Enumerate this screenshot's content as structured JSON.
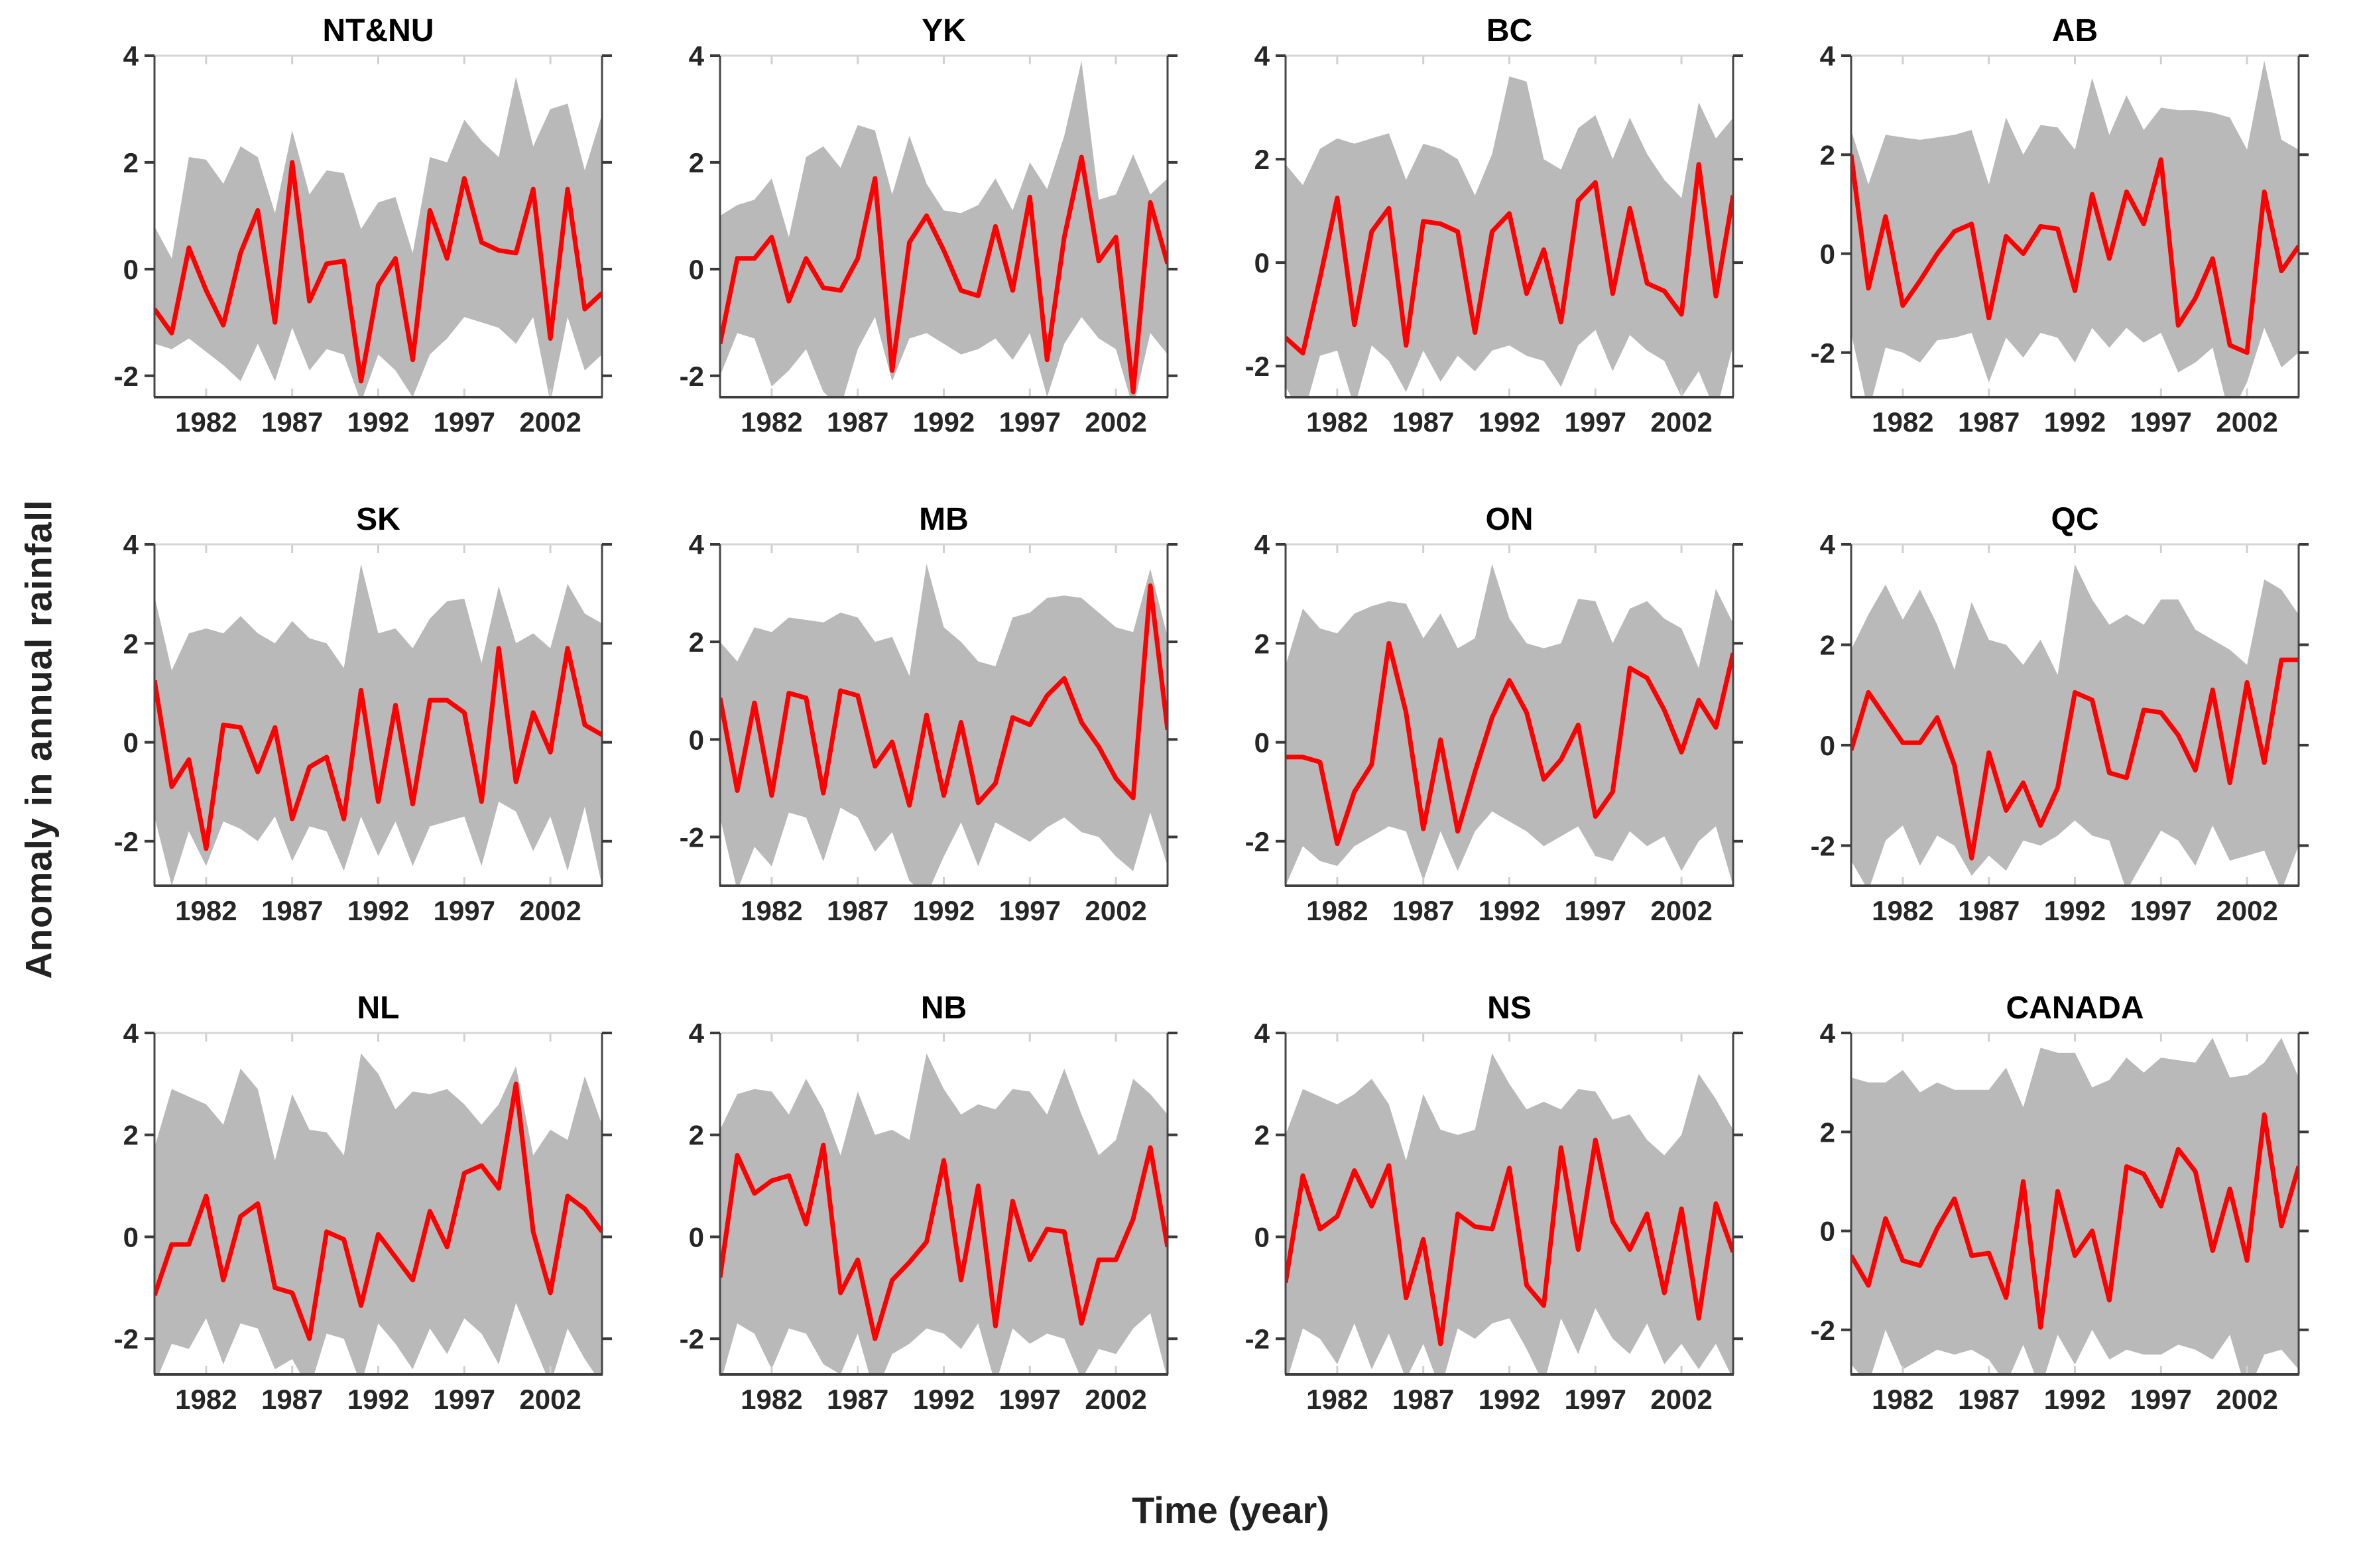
{
  "figure": {
    "ylabel": "Anomaly in annual rainfall",
    "xlabel": "Time (year)",
    "colors": {
      "band": "#b9b9b9",
      "line": "#ff0000",
      "box_top": "#d6d6d6",
      "box_side": "#474747",
      "box_bottom": "#3f3f3f",
      "tick_light": "#d0d0d0",
      "tick_dark": "#3a3a3a",
      "tick_text": "#262626",
      "title_text": "#000000"
    },
    "x_ticks": [
      1982,
      1987,
      1992,
      1997,
      2002
    ],
    "y_ticks": [
      -2,
      0,
      2,
      4
    ],
    "xlim": [
      1979,
      2005
    ],
    "years": [
      1979,
      1980,
      1981,
      1982,
      1983,
      1984,
      1985,
      1986,
      1987,
      1988,
      1989,
      1990,
      1991,
      1992,
      1993,
      1994,
      1995,
      1996,
      1997,
      1998,
      1999,
      2000,
      2001,
      2002,
      2003,
      2004,
      2005
    ]
  },
  "chart_data": [
    {
      "type": "line+band",
      "title": "NT&NU",
      "ylim": [
        -2.4,
        4
      ],
      "line": [
        -0.75,
        -1.2,
        0.4,
        -0.4,
        -1.05,
        0.3,
        1.1,
        -1.0,
        2.0,
        -0.6,
        0.1,
        0.15,
        -2.1,
        -0.3,
        0.2,
        -1.7,
        1.1,
        0.2,
        1.7,
        0.5,
        0.35,
        0.3,
        1.5,
        -1.3,
        1.5,
        -0.75,
        -0.45
      ],
      "band_upper": [
        0.8,
        0.2,
        2.1,
        2.05,
        1.6,
        2.3,
        2.1,
        1.05,
        2.6,
        1.4,
        1.85,
        1.8,
        0.75,
        1.25,
        1.35,
        0.3,
        2.1,
        2.0,
        2.8,
        2.4,
        2.1,
        3.6,
        2.3,
        3.0,
        3.1,
        1.85,
        2.9
      ],
      "band_lower": [
        -1.4,
        -1.5,
        -1.3,
        -1.55,
        -1.8,
        -2.1,
        -1.4,
        -2.1,
        -1.1,
        -1.9,
        -1.5,
        -1.6,
        -2.5,
        -1.6,
        -1.9,
        -2.4,
        -1.6,
        -1.3,
        -0.9,
        -1.0,
        -1.1,
        -1.4,
        -0.9,
        -2.5,
        -0.9,
        -1.9,
        -1.6
      ]
    },
    {
      "type": "line+band",
      "title": "YK",
      "ylim": [
        -2.4,
        4
      ],
      "line": [
        -1.4,
        0.2,
        0.2,
        0.6,
        -0.6,
        0.2,
        -0.35,
        -0.4,
        0.2,
        1.7,
        -1.9,
        0.5,
        1.0,
        0.35,
        -0.4,
        -0.5,
        0.8,
        -0.4,
        1.35,
        -1.7,
        0.6,
        2.1,
        0.15,
        0.6,
        -2.3,
        1.25,
        0.1
      ],
      "band_upper": [
        1.0,
        1.2,
        1.3,
        1.7,
        0.6,
        2.1,
        2.3,
        1.9,
        2.7,
        2.6,
        1.4,
        2.5,
        1.6,
        1.1,
        1.05,
        1.2,
        1.7,
        1.1,
        2.0,
        1.5,
        2.5,
        3.9,
        1.3,
        1.4,
        2.15,
        1.4,
        1.7
      ],
      "band_lower": [
        -2.0,
        -1.2,
        -1.3,
        -2.2,
        -1.9,
        -1.5,
        -2.3,
        -2.6,
        -1.5,
        -0.9,
        -2.1,
        -1.3,
        -1.2,
        -1.4,
        -1.6,
        -1.5,
        -1.3,
        -1.7,
        -1.2,
        -2.4,
        -1.4,
        -0.9,
        -1.3,
        -1.5,
        -2.6,
        -1.2,
        -1.6
      ]
    },
    {
      "type": "line+band",
      "title": "BC",
      "ylim": [
        -2.6,
        4
      ],
      "line": [
        -1.45,
        -1.75,
        -0.3,
        1.25,
        -1.2,
        0.6,
        1.05,
        -1.6,
        0.8,
        0.75,
        0.6,
        -1.35,
        0.6,
        0.95,
        -0.6,
        0.25,
        -1.15,
        1.2,
        1.55,
        -0.6,
        1.05,
        -0.4,
        -0.55,
        -1.0,
        1.9,
        -0.65,
        1.3
      ],
      "band_upper": [
        1.9,
        1.5,
        2.2,
        2.4,
        2.3,
        2.4,
        2.5,
        1.6,
        2.3,
        2.2,
        2.0,
        1.3,
        2.1,
        3.6,
        3.5,
        2.0,
        1.8,
        2.6,
        2.85,
        2.0,
        2.8,
        2.1,
        1.6,
        1.25,
        3.1,
        2.4,
        2.8
      ],
      "band_lower": [
        -2.4,
        -3.0,
        -1.8,
        -1.7,
        -2.8,
        -1.6,
        -1.9,
        -2.5,
        -1.7,
        -2.3,
        -1.8,
        -2.1,
        -1.7,
        -1.6,
        -1.8,
        -1.9,
        -2.4,
        -1.6,
        -1.3,
        -2.1,
        -1.4,
        -1.7,
        -1.9,
        -2.6,
        -2.1,
        -2.9,
        -1.6
      ]
    },
    {
      "type": "line+band",
      "title": "AB",
      "ylim": [
        -2.9,
        4
      ],
      "line": [
        2.0,
        -0.7,
        0.75,
        -1.05,
        -0.55,
        0.0,
        0.45,
        0.6,
        -1.3,
        0.35,
        0.0,
        0.55,
        0.5,
        -0.75,
        1.2,
        -0.1,
        1.25,
        0.6,
        1.9,
        -1.45,
        -0.9,
        -0.1,
        -1.85,
        -2.0,
        1.25,
        -0.35,
        0.15
      ],
      "band_upper": [
        2.5,
        1.4,
        2.4,
        2.35,
        2.3,
        2.35,
        2.4,
        2.5,
        1.4,
        2.75,
        2.0,
        2.6,
        2.55,
        2.1,
        3.55,
        2.4,
        3.2,
        2.5,
        2.95,
        2.9,
        2.9,
        2.85,
        2.75,
        2.1,
        3.9,
        2.3,
        2.1
      ],
      "band_lower": [
        -1.6,
        -3.2,
        -1.9,
        -2.0,
        -2.2,
        -1.75,
        -1.7,
        -1.6,
        -2.6,
        -1.7,
        -2.1,
        -1.6,
        -1.7,
        -2.2,
        -1.5,
        -1.9,
        -1.5,
        -1.8,
        -1.6,
        -2.4,
        -2.2,
        -1.9,
        -3.3,
        -2.6,
        -1.5,
        -2.3,
        -2.0
      ]
    },
    {
      "type": "line+band",
      "title": "SK",
      "ylim": [
        -2.9,
        4
      ],
      "line": [
        1.25,
        -0.9,
        -0.35,
        -2.15,
        0.35,
        0.3,
        -0.6,
        0.3,
        -1.55,
        -0.5,
        -0.3,
        -1.55,
        1.05,
        -1.2,
        0.75,
        -1.25,
        0.85,
        0.85,
        0.6,
        -1.2,
        1.9,
        -0.8,
        0.6,
        -0.2,
        1.9,
        0.35,
        0.15
      ],
      "band_upper": [
        2.95,
        1.45,
        2.2,
        2.3,
        2.2,
        2.55,
        2.2,
        2.0,
        2.45,
        2.1,
        2.0,
        1.5,
        3.6,
        2.2,
        2.3,
        1.9,
        2.5,
        2.85,
        2.9,
        1.6,
        3.15,
        2.0,
        2.2,
        1.9,
        3.2,
        2.6,
        2.4
      ],
      "band_lower": [
        -1.5,
        -2.9,
        -1.8,
        -2.5,
        -1.6,
        -1.75,
        -2.0,
        -1.5,
        -2.4,
        -1.7,
        -1.8,
        -2.6,
        -1.5,
        -2.3,
        -1.6,
        -2.5,
        -1.7,
        -1.6,
        -1.5,
        -2.5,
        -1.2,
        -1.4,
        -2.2,
        -1.5,
        -2.6,
        -1.3,
        -2.9
      ]
    },
    {
      "type": "line+band",
      "title": "MB",
      "ylim": [
        -3.0,
        4
      ],
      "line": [
        0.85,
        -1.05,
        0.75,
        -1.15,
        0.95,
        0.85,
        -1.1,
        1.0,
        0.9,
        -0.55,
        -0.05,
        -1.35,
        0.5,
        -1.15,
        0.35,
        -1.3,
        -0.9,
        0.45,
        0.3,
        0.9,
        1.25,
        0.35,
        -0.15,
        -0.8,
        -1.2,
        3.15,
        0.2
      ],
      "band_upper": [
        2.0,
        1.6,
        2.3,
        2.2,
        2.5,
        2.45,
        2.4,
        2.6,
        2.5,
        2.0,
        2.1,
        1.3,
        3.6,
        2.3,
        2.0,
        1.6,
        1.5,
        2.5,
        2.6,
        2.9,
        2.95,
        2.9,
        2.6,
        2.3,
        2.2,
        3.5,
        2.1
      ],
      "band_lower": [
        -1.6,
        -3.1,
        -2.2,
        -2.6,
        -1.5,
        -1.6,
        -2.5,
        -1.4,
        -1.6,
        -2.3,
        -1.9,
        -2.9,
        -3.2,
        -2.4,
        -1.7,
        -2.6,
        -1.7,
        -1.9,
        -2.1,
        -1.8,
        -1.6,
        -1.9,
        -2.0,
        -2.4,
        -2.7,
        -1.5,
        -2.6
      ]
    },
    {
      "type": "line+band",
      "title": "ON",
      "ylim": [
        -2.9,
        4
      ],
      "line": [
        -0.3,
        -0.3,
        -0.4,
        -2.05,
        -1.0,
        -0.45,
        2.0,
        0.6,
        -1.75,
        0.05,
        -1.8,
        -0.6,
        0.5,
        1.25,
        0.6,
        -0.75,
        -0.35,
        0.35,
        -1.5,
        -1.0,
        1.5,
        1.3,
        0.65,
        -0.2,
        0.85,
        0.3,
        1.8
      ],
      "band_upper": [
        1.55,
        2.7,
        2.3,
        2.2,
        2.6,
        2.75,
        2.85,
        2.8,
        2.1,
        2.6,
        1.9,
        2.1,
        3.6,
        2.5,
        2.0,
        1.9,
        2.0,
        2.9,
        2.85,
        2.0,
        2.7,
        2.85,
        2.5,
        2.3,
        1.5,
        3.1,
        2.4
      ],
      "band_lower": [
        -2.9,
        -2.1,
        -2.4,
        -2.5,
        -2.1,
        -1.9,
        -1.7,
        -1.8,
        -2.8,
        -1.8,
        -2.6,
        -1.8,
        -1.4,
        -1.6,
        -1.8,
        -2.1,
        -1.9,
        -1.7,
        -2.3,
        -2.4,
        -1.8,
        -2.1,
        -1.9,
        -2.6,
        -2.0,
        -1.7,
        -2.9
      ]
    },
    {
      "type": "line+band",
      "title": "QC",
      "ylim": [
        -2.8,
        4
      ],
      "line": [
        -0.1,
        1.05,
        0.55,
        0.05,
        0.05,
        0.55,
        -0.4,
        -2.25,
        -0.15,
        -1.3,
        -0.75,
        -1.6,
        -0.85,
        1.05,
        0.9,
        -0.55,
        -0.65,
        0.7,
        0.65,
        0.2,
        -0.5,
        1.1,
        -0.75,
        1.25,
        -0.35,
        1.7,
        1.7
      ],
      "band_upper": [
        1.9,
        2.6,
        3.2,
        2.5,
        3.1,
        2.4,
        1.5,
        2.85,
        2.1,
        2.0,
        1.6,
        2.1,
        1.4,
        3.6,
        2.9,
        2.4,
        2.6,
        2.4,
        2.9,
        2.9,
        2.3,
        2.1,
        1.9,
        1.6,
        3.3,
        3.1,
        2.6
      ],
      "band_lower": [
        -2.3,
        -2.9,
        -1.9,
        -1.6,
        -2.4,
        -1.8,
        -2.0,
        -2.6,
        -2.2,
        -2.5,
        -1.9,
        -2.0,
        -1.8,
        -1.5,
        -1.8,
        -1.9,
        -2.9,
        -2.3,
        -1.7,
        -1.9,
        -2.4,
        -1.6,
        -2.3,
        -2.2,
        -2.1,
        -2.9,
        -2.0
      ]
    },
    {
      "type": "line+band",
      "title": "NL",
      "ylim": [
        -2.7,
        4
      ],
      "line": [
        -1.15,
        -0.15,
        -0.15,
        0.8,
        -0.85,
        0.4,
        0.65,
        -1.0,
        -1.1,
        -2.0,
        0.1,
        -0.05,
        -1.35,
        0.05,
        -0.4,
        -0.85,
        0.5,
        -0.2,
        1.25,
        1.4,
        0.95,
        3.0,
        0.1,
        -1.1,
        0.8,
        0.55,
        0.1
      ],
      "band_upper": [
        1.75,
        2.9,
        2.75,
        2.6,
        2.2,
        3.3,
        2.9,
        1.5,
        2.8,
        2.1,
        2.05,
        1.6,
        3.6,
        3.2,
        2.5,
        2.85,
        2.8,
        2.9,
        2.6,
        2.2,
        2.6,
        3.35,
        1.6,
        2.1,
        1.9,
        3.15,
        2.2
      ],
      "band_lower": [
        -2.9,
        -2.1,
        -2.2,
        -1.6,
        -2.5,
        -1.7,
        -1.8,
        -2.6,
        -2.4,
        -3.0,
        -1.9,
        -2.0,
        -2.9,
        -1.7,
        -2.1,
        -2.6,
        -1.8,
        -2.3,
        -1.6,
        -1.9,
        -2.5,
        -1.3,
        -2.1,
        -2.9,
        -1.8,
        -2.4,
        -2.9
      ]
    },
    {
      "type": "line+band",
      "title": "NB",
      "ylim": [
        -2.7,
        4
      ],
      "line": [
        -0.8,
        1.6,
        0.85,
        1.1,
        1.2,
        0.25,
        1.8,
        -1.1,
        -0.45,
        -2.0,
        -0.85,
        -0.5,
        -0.1,
        1.5,
        -0.85,
        1.0,
        -1.75,
        0.7,
        -0.45,
        0.15,
        0.1,
        -1.7,
        -0.45,
        -0.45,
        0.35,
        1.75,
        -0.2
      ],
      "band_upper": [
        2.1,
        2.8,
        2.9,
        2.85,
        2.4,
        3.1,
        2.5,
        1.6,
        2.85,
        2.0,
        2.1,
        1.9,
        3.6,
        2.9,
        2.4,
        2.6,
        2.5,
        2.9,
        2.85,
        2.4,
        3.3,
        2.4,
        1.6,
        1.9,
        3.1,
        2.8,
        2.4
      ],
      "band_lower": [
        -2.9,
        -1.7,
        -1.9,
        -2.6,
        -1.8,
        -1.9,
        -2.5,
        -2.7,
        -1.9,
        -3.1,
        -2.3,
        -2.1,
        -1.8,
        -1.9,
        -2.2,
        -1.7,
        -2.9,
        -1.8,
        -2.1,
        -1.9,
        -2.0,
        -2.8,
        -2.2,
        -2.3,
        -1.8,
        -1.5,
        -2.8
      ]
    },
    {
      "type": "line+band",
      "title": "NS",
      "ylim": [
        -2.7,
        4
      ],
      "line": [
        -0.9,
        1.2,
        0.15,
        0.4,
        1.3,
        0.6,
        1.4,
        -1.2,
        -0.05,
        -2.1,
        0.45,
        0.2,
        0.15,
        1.35,
        -0.95,
        -1.35,
        1.75,
        -0.25,
        1.9,
        0.3,
        -0.25,
        0.45,
        -1.1,
        0.55,
        -1.6,
        0.65,
        -0.3
      ],
      "band_upper": [
        2.0,
        2.9,
        2.75,
        2.6,
        2.8,
        3.1,
        2.6,
        1.5,
        2.8,
        2.1,
        2.0,
        2.1,
        3.6,
        3.0,
        2.5,
        2.65,
        2.5,
        2.9,
        2.85,
        2.3,
        2.4,
        1.9,
        1.6,
        2.0,
        3.2,
        2.7,
        2.1
      ],
      "band_lower": [
        -2.9,
        -1.8,
        -2.0,
        -2.5,
        -1.7,
        -2.6,
        -1.9,
        -2.8,
        -2.1,
        -3.0,
        -1.8,
        -2.0,
        -1.7,
        -1.6,
        -2.2,
        -2.9,
        -1.6,
        -2.3,
        -1.4,
        -2.0,
        -2.3,
        -1.7,
        -2.5,
        -2.1,
        -2.6,
        -2.1,
        -2.8
      ]
    },
    {
      "type": "line+band",
      "title": "CANADA",
      "ylim": [
        -2.9,
        4
      ],
      "line": [
        -0.5,
        -1.1,
        0.25,
        -0.6,
        -0.7,
        0.05,
        0.65,
        -0.5,
        -0.45,
        -1.35,
        1.0,
        -1.95,
        0.8,
        -0.5,
        0.0,
        -1.4,
        1.3,
        1.15,
        0.5,
        1.65,
        1.2,
        -0.4,
        0.85,
        -0.6,
        2.35,
        0.1,
        1.3
      ],
      "band_upper": [
        3.1,
        3.0,
        3.0,
        3.25,
        2.8,
        3.0,
        2.85,
        2.85,
        2.85,
        3.3,
        2.5,
        3.7,
        3.6,
        3.6,
        2.9,
        3.05,
        3.5,
        3.2,
        3.5,
        3.45,
        3.4,
        3.9,
        3.1,
        3.15,
        3.4,
        3.9,
        3.1
      ],
      "band_lower": [
        -2.7,
        -3.1,
        -2.0,
        -2.8,
        -2.6,
        -2.4,
        -2.5,
        -2.4,
        -2.6,
        -3.1,
        -2.3,
        -3.2,
        -2.1,
        -2.7,
        -2.0,
        -2.6,
        -2.4,
        -2.5,
        -2.5,
        -2.3,
        -2.4,
        -2.6,
        -2.1,
        -3.3,
        -2.5,
        -2.4,
        -2.8
      ]
    }
  ]
}
